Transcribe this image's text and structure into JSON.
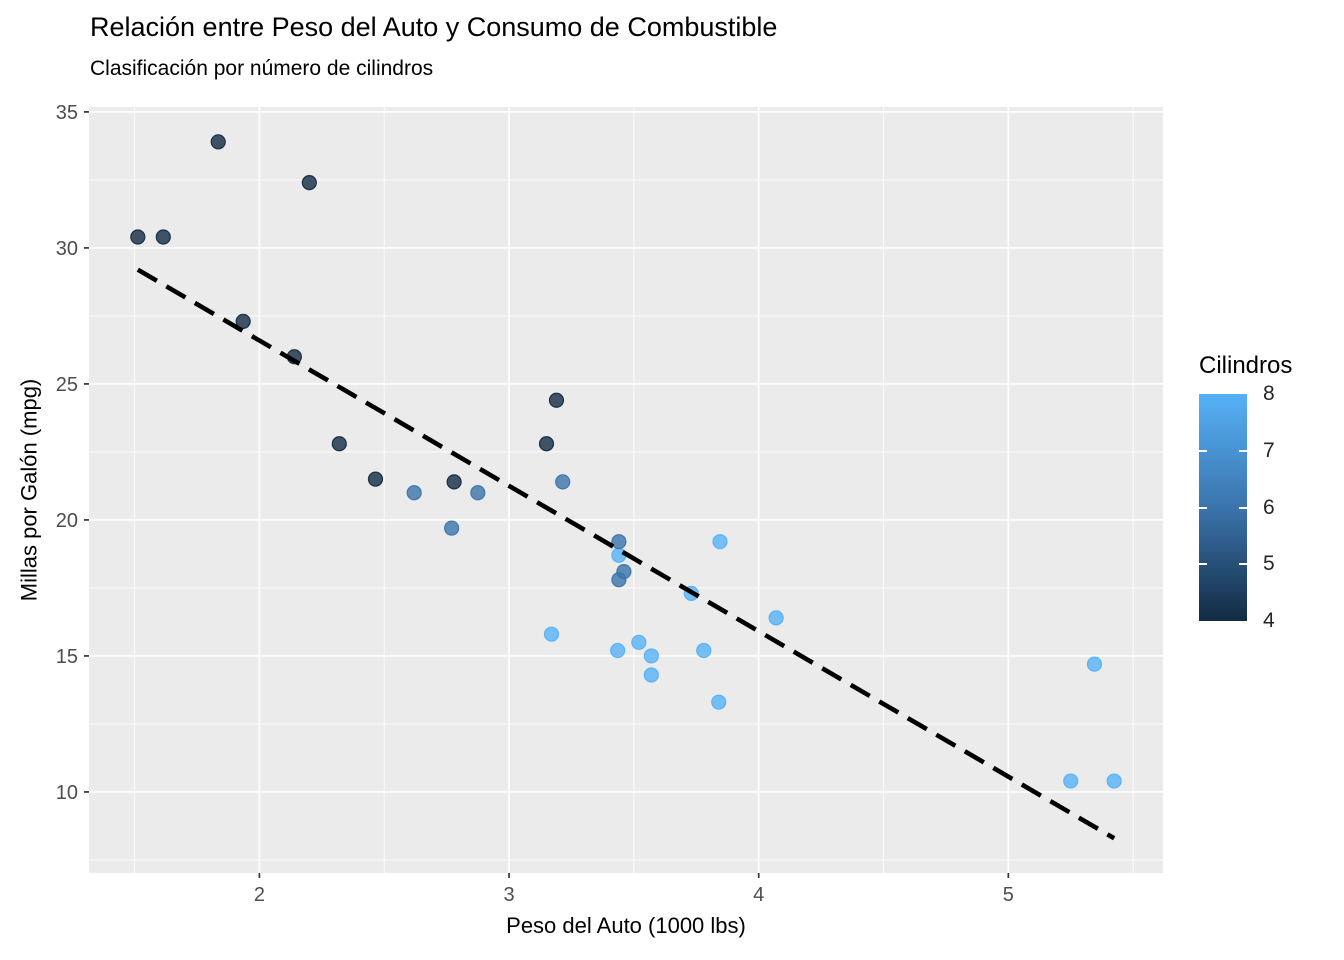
{
  "chart_data": {
    "type": "scatter",
    "title": "Relación entre Peso del Auto y Consumo de Combustible",
    "subtitle": "Clasificación por número de cilindros",
    "xlabel": "Peso del Auto (1000 lbs)",
    "ylabel": "Millas por Galón (mpg)",
    "x_domain": [
      1.3174,
      5.6196
    ],
    "y_domain": [
      7.02,
      35.18
    ],
    "x_major_ticks": [
      2,
      3,
      4,
      5
    ],
    "x_minor_ticks": [
      1.5,
      2.5,
      3.5,
      4.5,
      5.5
    ],
    "y_major_ticks": [
      10,
      15,
      20,
      25,
      30,
      35
    ],
    "y_minor_ticks": [
      7.5,
      12.5,
      17.5,
      22.5,
      27.5,
      32.5
    ],
    "grid": true,
    "panel_bg": "#EBEBEB",
    "grid_color": "#FFFFFF",
    "tick_color": "#333333",
    "tick_label_color": "#4D4D4D",
    "point_radius": 7,
    "point_opacity": 0.8,
    "cyl_colors": {
      "4": "#132B43",
      "6": "#3B74AC",
      "8": "#56B1F7"
    },
    "points": [
      {
        "wt": 2.62,
        "mpg": 21.0,
        "cyl": 6
      },
      {
        "wt": 2.875,
        "mpg": 21.0,
        "cyl": 6
      },
      {
        "wt": 2.32,
        "mpg": 22.8,
        "cyl": 4
      },
      {
        "wt": 3.215,
        "mpg": 21.4,
        "cyl": 6
      },
      {
        "wt": 3.44,
        "mpg": 18.7,
        "cyl": 8
      },
      {
        "wt": 3.46,
        "mpg": 18.1,
        "cyl": 6
      },
      {
        "wt": 3.57,
        "mpg": 14.3,
        "cyl": 8
      },
      {
        "wt": 3.19,
        "mpg": 24.4,
        "cyl": 4
      },
      {
        "wt": 3.15,
        "mpg": 22.8,
        "cyl": 4
      },
      {
        "wt": 3.44,
        "mpg": 19.2,
        "cyl": 6
      },
      {
        "wt": 3.44,
        "mpg": 17.8,
        "cyl": 6
      },
      {
        "wt": 4.07,
        "mpg": 16.4,
        "cyl": 8
      },
      {
        "wt": 3.73,
        "mpg": 17.3,
        "cyl": 8
      },
      {
        "wt": 3.78,
        "mpg": 15.2,
        "cyl": 8
      },
      {
        "wt": 5.25,
        "mpg": 10.4,
        "cyl": 8
      },
      {
        "wt": 5.424,
        "mpg": 10.4,
        "cyl": 8
      },
      {
        "wt": 5.345,
        "mpg": 14.7,
        "cyl": 8
      },
      {
        "wt": 2.2,
        "mpg": 32.4,
        "cyl": 4
      },
      {
        "wt": 1.615,
        "mpg": 30.4,
        "cyl": 4
      },
      {
        "wt": 1.835,
        "mpg": 33.9,
        "cyl": 4
      },
      {
        "wt": 2.465,
        "mpg": 21.5,
        "cyl": 4
      },
      {
        "wt": 3.52,
        "mpg": 15.5,
        "cyl": 8
      },
      {
        "wt": 3.435,
        "mpg": 15.2,
        "cyl": 8
      },
      {
        "wt": 3.84,
        "mpg": 13.3,
        "cyl": 8
      },
      {
        "wt": 3.845,
        "mpg": 19.2,
        "cyl": 8
      },
      {
        "wt": 1.935,
        "mpg": 27.3,
        "cyl": 4
      },
      {
        "wt": 2.14,
        "mpg": 26.0,
        "cyl": 4
      },
      {
        "wt": 1.513,
        "mpg": 30.4,
        "cyl": 4
      },
      {
        "wt": 3.17,
        "mpg": 15.8,
        "cyl": 8
      },
      {
        "wt": 2.77,
        "mpg": 19.7,
        "cyl": 6
      },
      {
        "wt": 3.57,
        "mpg": 15.0,
        "cyl": 8
      },
      {
        "wt": 2.78,
        "mpg": 21.4,
        "cyl": 4
      }
    ],
    "trend": {
      "type": "linear",
      "slope": -5.3445,
      "intercept": 37.2851,
      "x_start": 1.513,
      "x_end": 5.424,
      "color": "#000000",
      "style": "dashed"
    },
    "legend": {
      "title": "Cilindros",
      "position": "right",
      "breaks": [
        8,
        7,
        6,
        5,
        4
      ],
      "tick_breaks": [
        5,
        6,
        7
      ],
      "domain": [
        4,
        8
      ],
      "gradient_low": "#132B43",
      "gradient_mid": "#3B74AC",
      "gradient_high": "#56B1F7"
    }
  }
}
